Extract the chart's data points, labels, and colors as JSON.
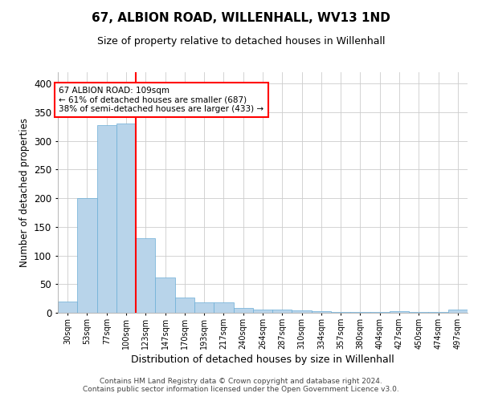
{
  "title": "67, ALBION ROAD, WILLENHALL, WV13 1ND",
  "subtitle": "Size of property relative to detached houses in Willenhall",
  "xlabel": "Distribution of detached houses by size in Willenhall",
  "ylabel": "Number of detached properties",
  "footer_line1": "Contains HM Land Registry data © Crown copyright and database right 2024.",
  "footer_line2": "Contains public sector information licensed under the Open Government Licence v3.0.",
  "bin_labels": [
    "30sqm",
    "53sqm",
    "77sqm",
    "100sqm",
    "123sqm",
    "147sqm",
    "170sqm",
    "193sqm",
    "217sqm",
    "240sqm",
    "264sqm",
    "287sqm",
    "310sqm",
    "334sqm",
    "357sqm",
    "380sqm",
    "404sqm",
    "427sqm",
    "450sqm",
    "474sqm",
    "497sqm"
  ],
  "bar_values": [
    20,
    200,
    328,
    330,
    130,
    62,
    27,
    18,
    18,
    8,
    5,
    5,
    4,
    3,
    2,
    2,
    1,
    3,
    1,
    1,
    5
  ],
  "bar_color": "#B8D4EA",
  "bar_edge_color": "#6BAED6",
  "vline_x": 3.5,
  "vline_color": "red",
  "annotation_title": "67 ALBION ROAD: 109sqm",
  "annotation_line2": "← 61% of detached houses are smaller (687)",
  "annotation_line3": "38% of semi-detached houses are larger (433) →",
  "annotation_box_color": "red",
  "annotation_bg": "white",
  "ylim": [
    0,
    420
  ],
  "yticks": [
    0,
    50,
    100,
    150,
    200,
    250,
    300,
    350,
    400
  ],
  "grid_color": "#CCCCCC",
  "background_color": "#FFFFFF"
}
